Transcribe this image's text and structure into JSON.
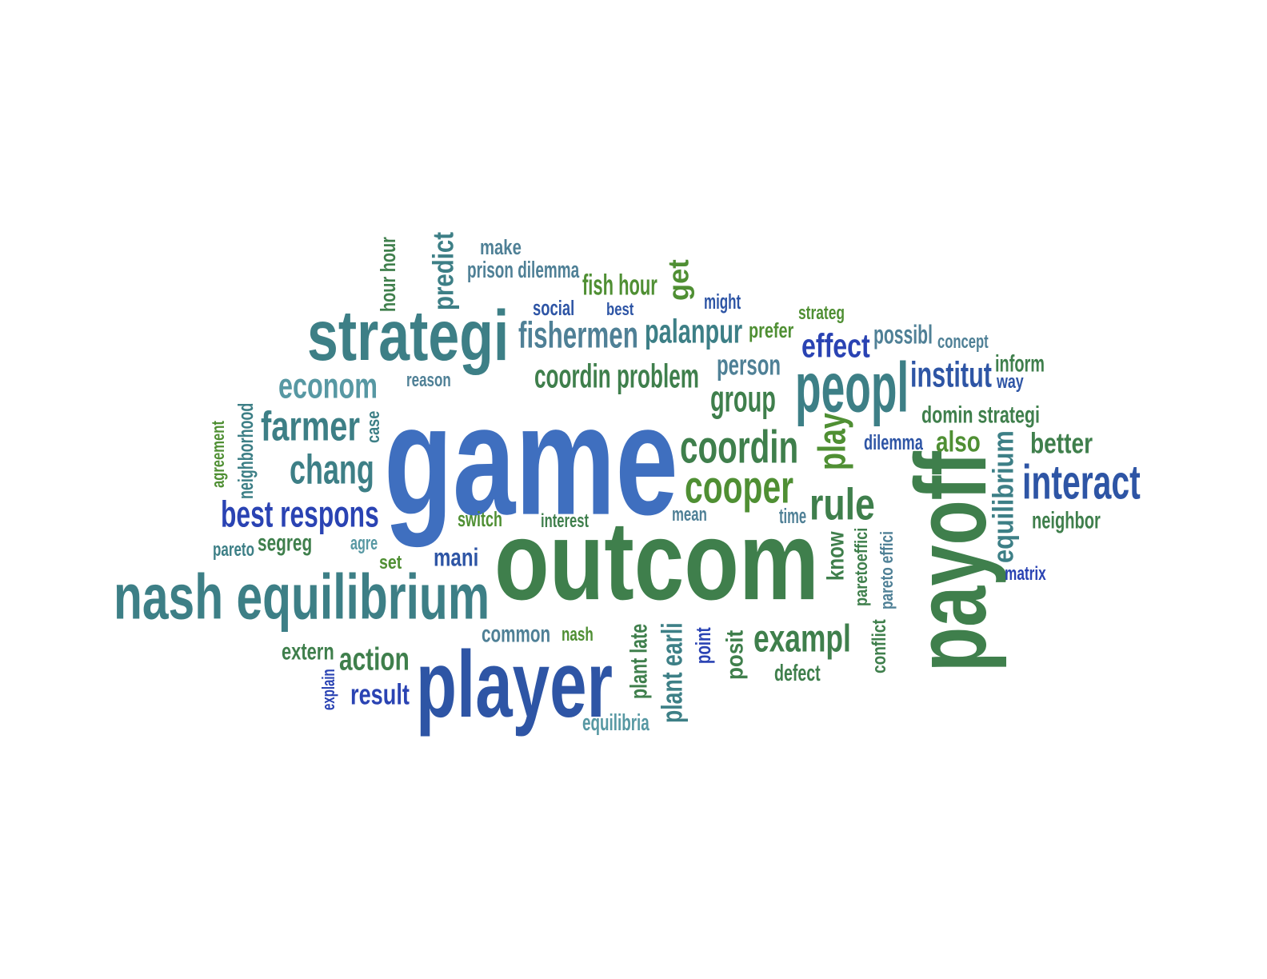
{
  "colors": {
    "blue": "#3f6fbf",
    "darkblue": "#2a43b3",
    "navy": "#2e55a5",
    "teal": "#3d7f86",
    "slate": "#4f8096",
    "green": "#3f7f4c",
    "leaf": "#4f8f33",
    "skyteal": "#5798a3"
  },
  "words": [
    {
      "text": "game",
      "color": "blue",
      "rotated": false
    },
    {
      "text": "outcom",
      "color": "green",
      "rotated": false
    },
    {
      "text": "payoff",
      "color": "green",
      "rotated": true
    },
    {
      "text": "player",
      "color": "navy",
      "rotated": false
    },
    {
      "text": "strategi",
      "color": "teal",
      "rotated": false
    },
    {
      "text": "nash equilibrium",
      "color": "teal",
      "rotated": false
    },
    {
      "text": "peopl",
      "color": "teal",
      "rotated": false
    },
    {
      "text": "interact",
      "color": "navy",
      "rotated": false
    },
    {
      "text": "coordin",
      "color": "green",
      "rotated": false
    },
    {
      "text": "cooper",
      "color": "leaf",
      "rotated": false
    },
    {
      "text": "rule",
      "color": "green",
      "rotated": false
    },
    {
      "text": "exampl",
      "color": "green",
      "rotated": false
    },
    {
      "text": "best respons",
      "color": "darkblue",
      "rotated": false
    },
    {
      "text": "farmer",
      "color": "teal",
      "rotated": false
    },
    {
      "text": "chang",
      "color": "teal",
      "rotated": false
    },
    {
      "text": "econom",
      "color": "skyteal",
      "rotated": false
    },
    {
      "text": "fishermen",
      "color": "slate",
      "rotated": false
    },
    {
      "text": "palanpur",
      "color": "teal",
      "rotated": false
    },
    {
      "text": "coordin problem",
      "color": "green",
      "rotated": false
    },
    {
      "text": "group",
      "color": "green",
      "rotated": false
    },
    {
      "text": "person",
      "color": "slate",
      "rotated": false
    },
    {
      "text": "effect",
      "color": "darkblue",
      "rotated": false
    },
    {
      "text": "institut",
      "color": "navy",
      "rotated": false
    },
    {
      "text": "possibl",
      "color": "slate",
      "rotated": false
    },
    {
      "text": "action",
      "color": "green",
      "rotated": false
    },
    {
      "text": "result",
      "color": "darkblue",
      "rotated": false
    },
    {
      "text": "equilibrium",
      "color": "teal",
      "rotated": true
    },
    {
      "text": "play",
      "color": "leaf",
      "rotated": true
    },
    {
      "text": "predict",
      "color": "teal",
      "rotated": true
    },
    {
      "text": "hour hour",
      "color": "green",
      "rotated": true
    },
    {
      "text": "make",
      "color": "slate",
      "rotated": false
    },
    {
      "text": "prison dilemma",
      "color": "slate",
      "rotated": false
    },
    {
      "text": "fish hour",
      "color": "leaf",
      "rotated": false
    },
    {
      "text": "get",
      "color": "leaf",
      "rotated": true
    },
    {
      "text": "social",
      "color": "navy",
      "rotated": false
    },
    {
      "text": "best",
      "color": "navy",
      "rotated": false
    },
    {
      "text": "might",
      "color": "navy",
      "rotated": false
    },
    {
      "text": "prefer",
      "color": "leaf",
      "rotated": false
    },
    {
      "text": "strateg",
      "color": "leaf",
      "rotated": false
    },
    {
      "text": "concept",
      "color": "slate",
      "rotated": false
    },
    {
      "text": "inform",
      "color": "green",
      "rotated": false
    },
    {
      "text": "way",
      "color": "navy",
      "rotated": false
    },
    {
      "text": "domin strategi",
      "color": "green",
      "rotated": false
    },
    {
      "text": "also",
      "color": "leaf",
      "rotated": false
    },
    {
      "text": "better",
      "color": "green",
      "rotated": false
    },
    {
      "text": "dilemma",
      "color": "navy",
      "rotated": false
    },
    {
      "text": "neighbor",
      "color": "green",
      "rotated": false
    },
    {
      "text": "matrix",
      "color": "darkblue",
      "rotated": false
    },
    {
      "text": "reason",
      "color": "slate",
      "rotated": false
    },
    {
      "text": "case",
      "color": "teal",
      "rotated": true
    },
    {
      "text": "neighborhood",
      "color": "teal",
      "rotated": true
    },
    {
      "text": "agreement",
      "color": "leaf",
      "rotated": true
    },
    {
      "text": "switch",
      "color": "leaf",
      "rotated": false
    },
    {
      "text": "interest",
      "color": "green",
      "rotated": false
    },
    {
      "text": "mean",
      "color": "slate",
      "rotated": false
    },
    {
      "text": "time",
      "color": "slate",
      "rotated": false
    },
    {
      "text": "pareto",
      "color": "teal",
      "rotated": false
    },
    {
      "text": "segreg",
      "color": "green",
      "rotated": false
    },
    {
      "text": "agre",
      "color": "skyteal",
      "rotated": false
    },
    {
      "text": "set",
      "color": "leaf",
      "rotated": false
    },
    {
      "text": "mani",
      "color": "navy",
      "rotated": false
    },
    {
      "text": "know",
      "color": "green",
      "rotated": true
    },
    {
      "text": "paretoeffici",
      "color": "green",
      "rotated": true
    },
    {
      "text": "pareto effici",
      "color": "slate",
      "rotated": true
    },
    {
      "text": "conflict",
      "color": "green",
      "rotated": true
    },
    {
      "text": "common",
      "color": "slate",
      "rotated": false
    },
    {
      "text": "nash",
      "color": "leaf",
      "rotated": false
    },
    {
      "text": "extern",
      "color": "green",
      "rotated": false
    },
    {
      "text": "explain",
      "color": "darkblue",
      "rotated": true
    },
    {
      "text": "plant late",
      "color": "green",
      "rotated": true
    },
    {
      "text": "plant earli",
      "color": "teal",
      "rotated": true
    },
    {
      "text": "point",
      "color": "darkblue",
      "rotated": true
    },
    {
      "text": "posit",
      "color": "green",
      "rotated": true
    },
    {
      "text": "defect",
      "color": "green",
      "rotated": false
    },
    {
      "text": "equilibria",
      "color": "skyteal",
      "rotated": false
    }
  ]
}
